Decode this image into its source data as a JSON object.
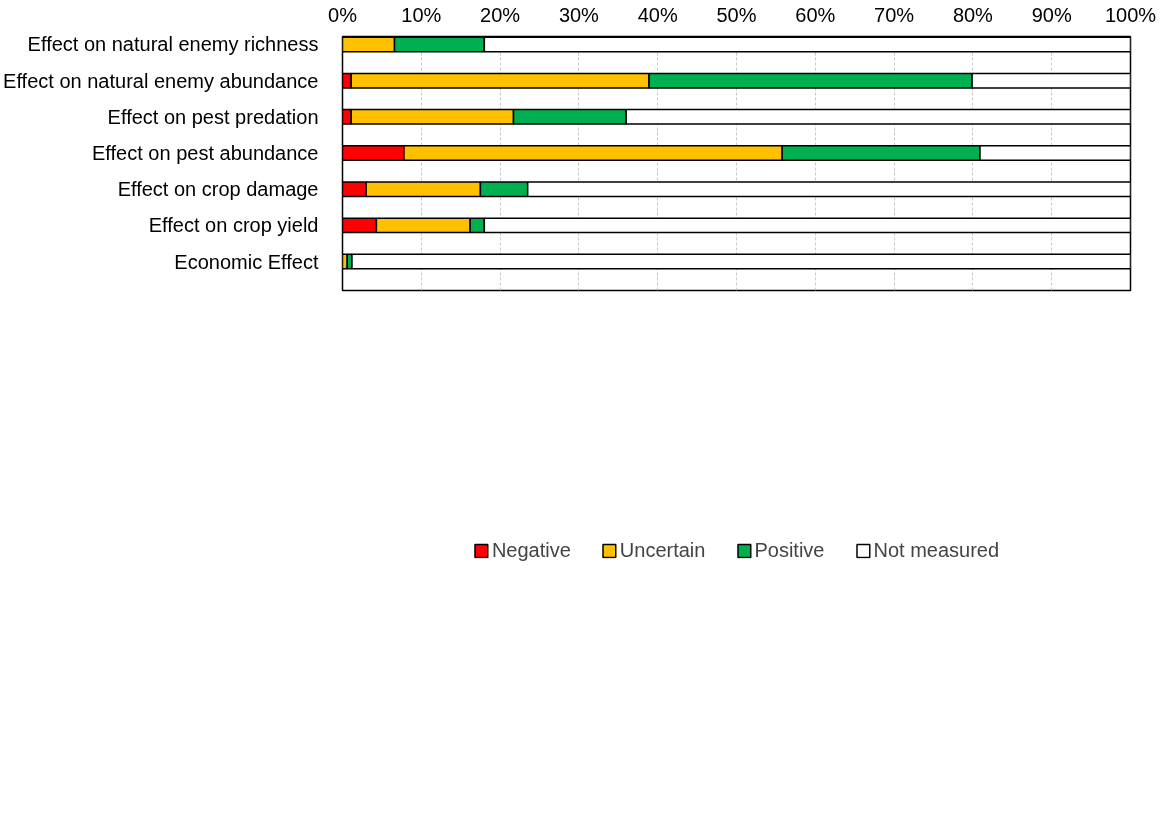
{
  "chart_data": {
    "type": "bar",
    "orientation": "horizontal",
    "stacked": true,
    "categories": [
      "Effect on natural enemy richness",
      "Effect on natural enemy abundance",
      "Effect on pest predation",
      "Effect on pest abundance",
      "Effect on crop damage",
      "Effect on crop yield",
      "Economic Effect"
    ],
    "series": [
      {
        "name": "Negative",
        "color": "#ff0000",
        "values": [
          0,
          1.1,
          1.1,
          7.8,
          3.0,
          4.3,
          0
        ]
      },
      {
        "name": "Uncertain",
        "color": "#ffc000",
        "values": [
          6.6,
          37.8,
          20.6,
          48,
          14.5,
          11.9,
          0.6
        ]
      },
      {
        "name": "Positive",
        "color": "#00b050",
        "values": [
          11.4,
          41,
          14.3,
          25.1,
          6,
          1.8,
          0.6
        ]
      },
      {
        "name": "Not measured",
        "color": "#ffffff",
        "values": [
          82,
          20.1,
          64,
          19.1,
          76.5,
          82,
          98.8
        ]
      }
    ],
    "xlim": [
      0,
      100
    ],
    "xticks": [
      {
        "value": 0,
        "label": "0%"
      },
      {
        "value": 10,
        "label": "10%"
      },
      {
        "value": 20,
        "label": "20%"
      },
      {
        "value": 30,
        "label": "30%"
      },
      {
        "value": 40,
        "label": "40%"
      },
      {
        "value": 50,
        "label": "50%"
      },
      {
        "value": 60,
        "label": "60%"
      },
      {
        "value": 70,
        "label": "70%"
      },
      {
        "value": 80,
        "label": "80%"
      },
      {
        "value": 90,
        "label": "90%"
      },
      {
        "value": 100,
        "label": "100%"
      }
    ],
    "grid": "x",
    "legend": "bottom"
  }
}
